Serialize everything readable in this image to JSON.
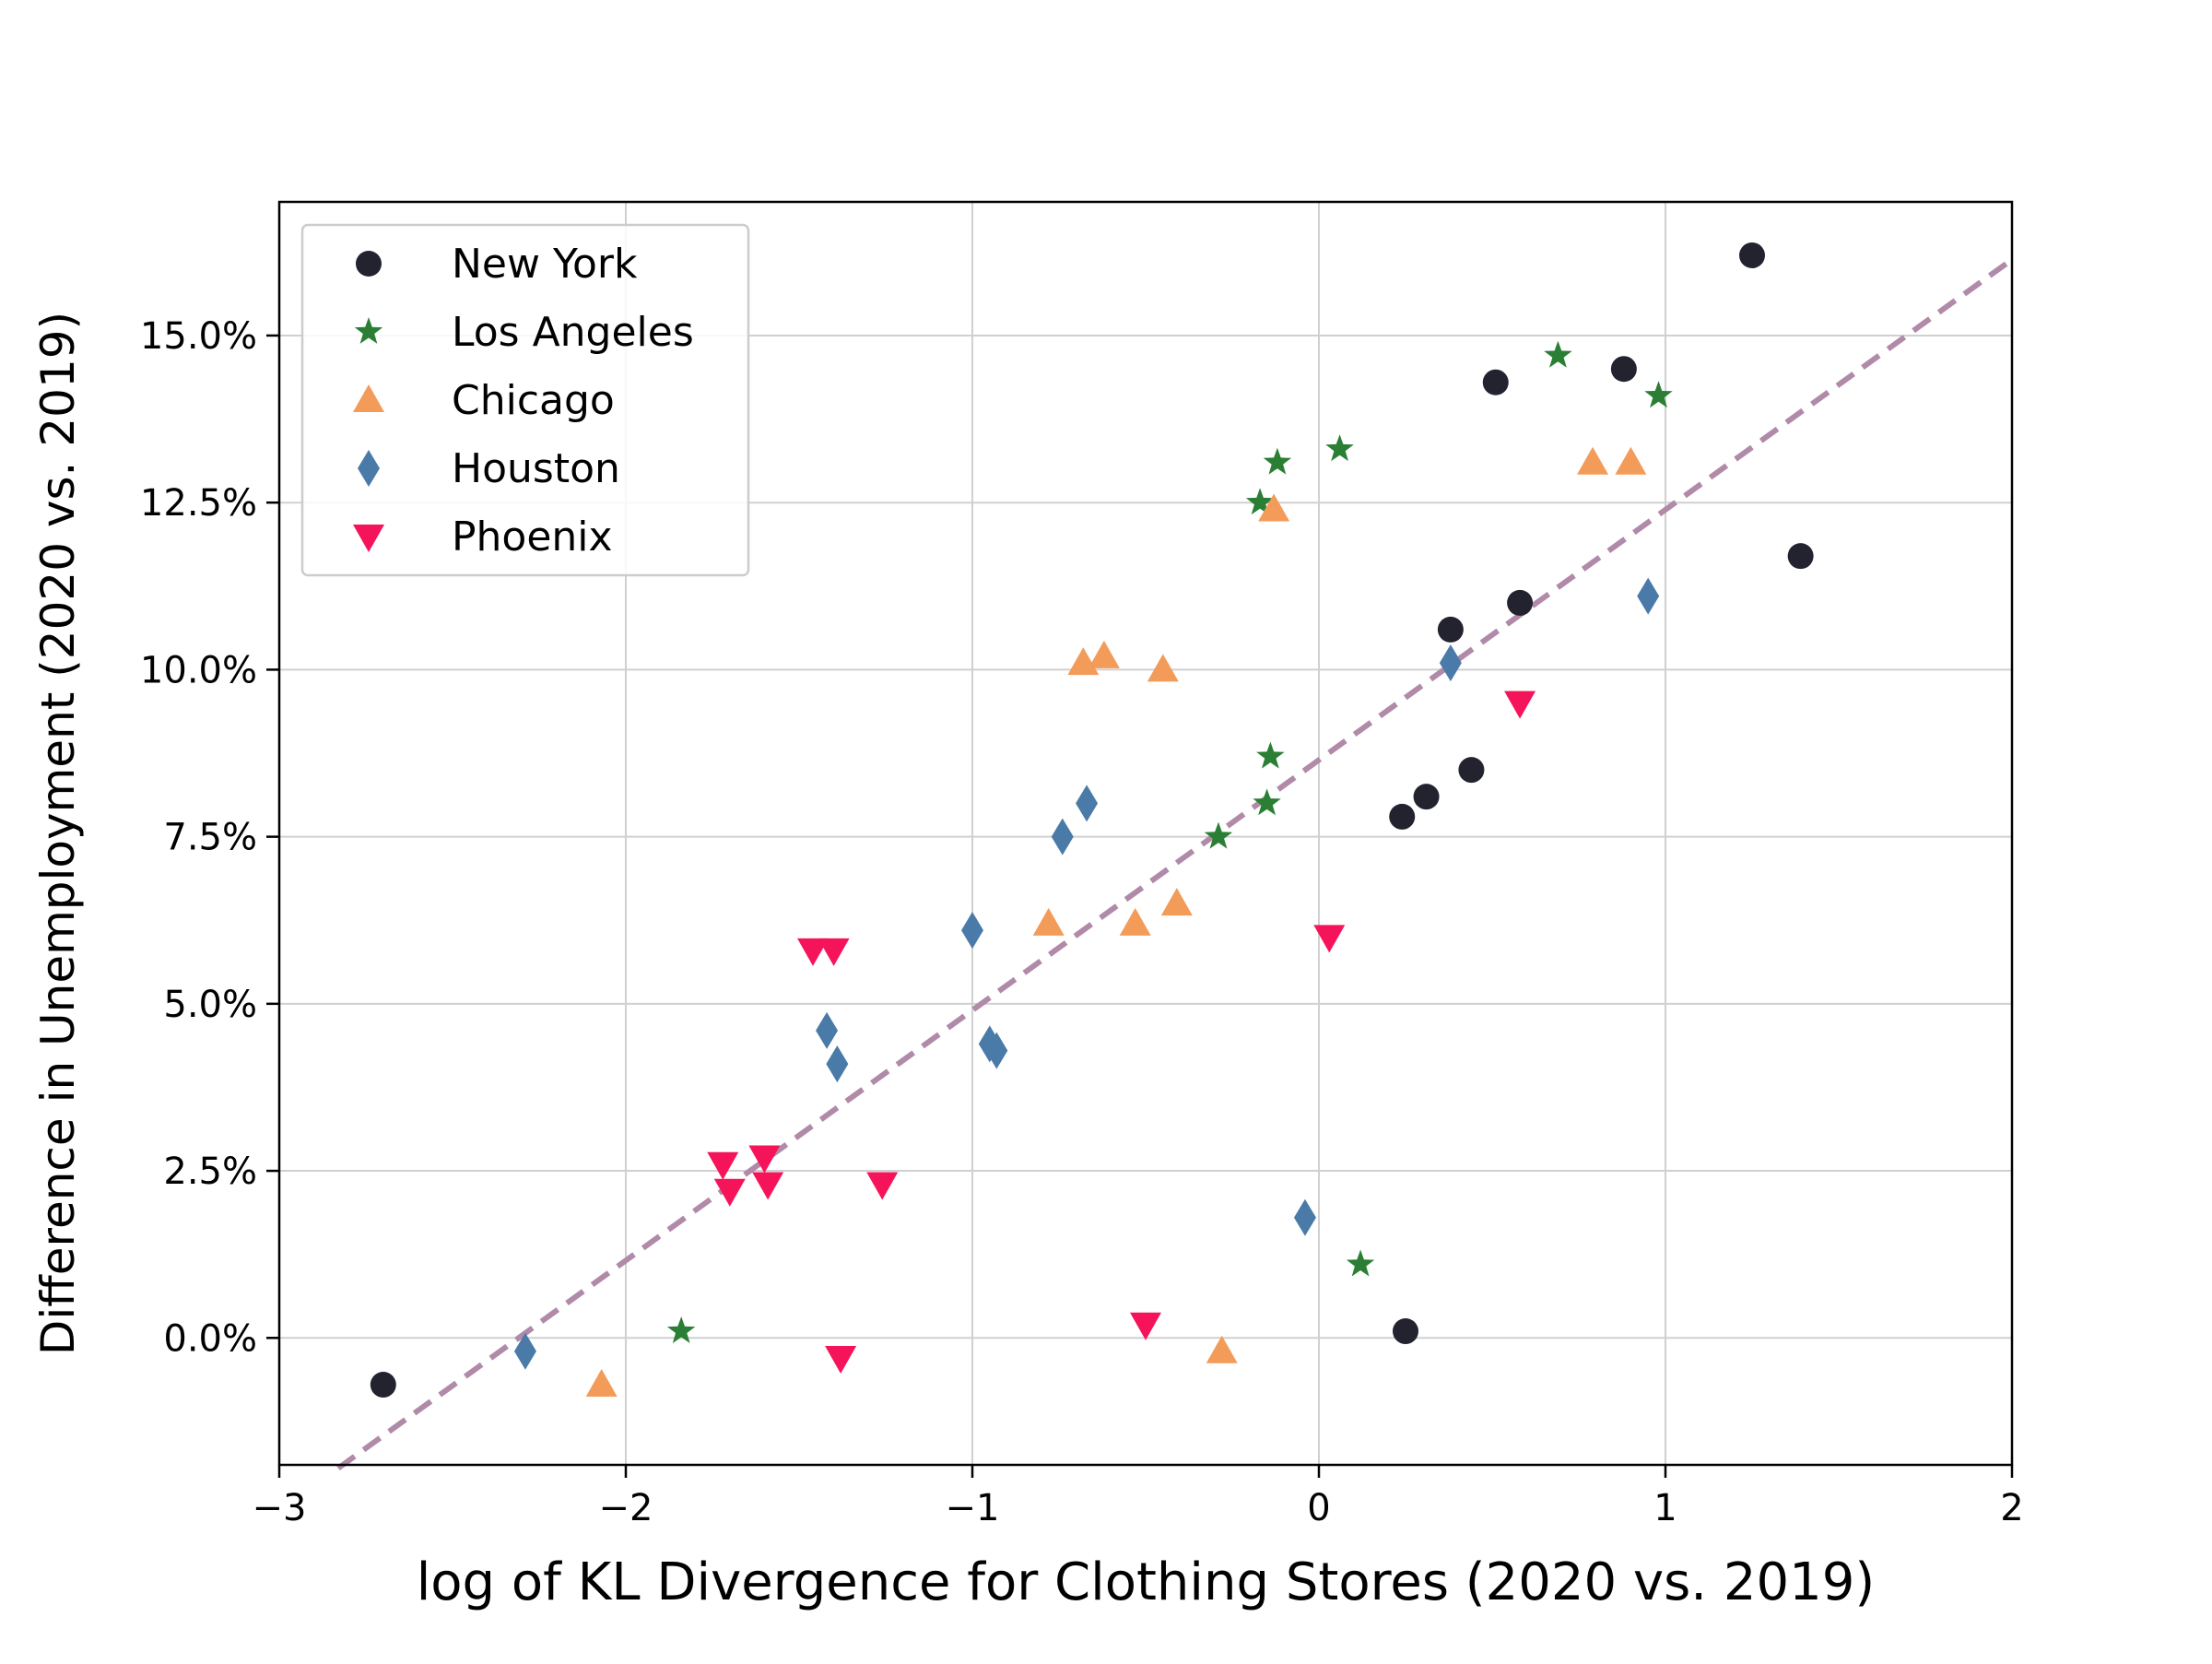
{
  "chart_data": {
    "type": "scatter",
    "title": "",
    "xlabel": "log of KL Divergence for Clothing Stores (2020 vs. 2019)",
    "ylabel": "Difference in Unemployment (2020 vs. 2019)",
    "xlim": [
      -3,
      2
    ],
    "ylim": [
      -0.019,
      0.17
    ],
    "xticks": [
      {
        "value": -3,
        "label": "−3"
      },
      {
        "value": -2,
        "label": "−2"
      },
      {
        "value": -1,
        "label": "−1"
      },
      {
        "value": 0,
        "label": "0"
      },
      {
        "value": 1,
        "label": "1"
      },
      {
        "value": 2,
        "label": "2"
      }
    ],
    "yticks": [
      {
        "value": 0.0,
        "label": "0.0%"
      },
      {
        "value": 0.025,
        "label": "2.5%"
      },
      {
        "value": 0.05,
        "label": "5.0%"
      },
      {
        "value": 0.075,
        "label": "7.5%"
      },
      {
        "value": 0.1,
        "label": "10.0%"
      },
      {
        "value": 0.125,
        "label": "12.5%"
      },
      {
        "value": 0.15,
        "label": "15.0%"
      }
    ],
    "grid": true,
    "legend_position": "upper-left",
    "series": [
      {
        "name": "New York",
        "marker": "circle",
        "color": "#22232e",
        "points": [
          [
            -2.7,
            -0.007
          ],
          [
            0.24,
            0.078
          ],
          [
            0.25,
            0.001
          ],
          [
            0.31,
            0.081
          ],
          [
            0.38,
            0.106
          ],
          [
            0.44,
            0.085
          ],
          [
            0.51,
            0.143
          ],
          [
            0.58,
            0.11
          ],
          [
            0.88,
            0.145
          ],
          [
            1.25,
            0.162
          ],
          [
            1.39,
            0.117
          ]
        ]
      },
      {
        "name": "Los Angeles",
        "marker": "star",
        "color": "#2a7f35",
        "points": [
          [
            -1.84,
            0.001
          ],
          [
            -0.29,
            0.075
          ],
          [
            -0.17,
            0.125
          ],
          [
            -0.15,
            0.08
          ],
          [
            -0.14,
            0.087
          ],
          [
            -0.12,
            0.131
          ],
          [
            0.06,
            0.133
          ],
          [
            0.12,
            0.011
          ],
          [
            0.69,
            0.147
          ],
          [
            0.98,
            0.141
          ]
        ]
      },
      {
        "name": "Chicago",
        "marker": "triangle-up",
        "color": "#f39c5a",
        "points": [
          [
            -2.07,
            -0.007
          ],
          [
            -0.78,
            0.062
          ],
          [
            -0.68,
            0.101
          ],
          [
            -0.62,
            0.102
          ],
          [
            -0.53,
            0.062
          ],
          [
            -0.45,
            0.1
          ],
          [
            -0.41,
            0.065
          ],
          [
            -0.28,
            -0.002
          ],
          [
            -0.13,
            0.124
          ],
          [
            0.79,
            0.131
          ],
          [
            0.9,
            0.131
          ]
        ]
      },
      {
        "name": "Houston",
        "marker": "thin-diamond",
        "color": "#4a7ba8",
        "points": [
          [
            -2.29,
            -0.002
          ],
          [
            -1.42,
            0.046
          ],
          [
            -1.39,
            0.041
          ],
          [
            -1.0,
            0.061
          ],
          [
            -0.95,
            0.044
          ],
          [
            -0.93,
            0.043
          ],
          [
            -0.74,
            0.075
          ],
          [
            -0.67,
            0.08
          ],
          [
            -0.04,
            0.018
          ],
          [
            0.38,
            0.101
          ],
          [
            0.95,
            0.111
          ]
        ]
      },
      {
        "name": "Phoenix",
        "marker": "triangle-down",
        "color": "#f5145a",
        "points": [
          [
            -1.72,
            0.026
          ],
          [
            -1.7,
            0.022
          ],
          [
            -1.6,
            0.027
          ],
          [
            -1.59,
            0.023
          ],
          [
            -1.46,
            0.058
          ],
          [
            -1.4,
            0.058
          ],
          [
            -1.38,
            -0.003
          ],
          [
            -1.26,
            0.023
          ],
          [
            -0.5,
            0.002
          ],
          [
            0.03,
            0.06
          ],
          [
            0.58,
            0.095
          ]
        ]
      }
    ],
    "trendline": {
      "style": "dashed",
      "color": "#b08aa8",
      "x": [
        -2.83,
        1.99
      ],
      "y": [
        -0.0195,
        0.161
      ]
    }
  }
}
